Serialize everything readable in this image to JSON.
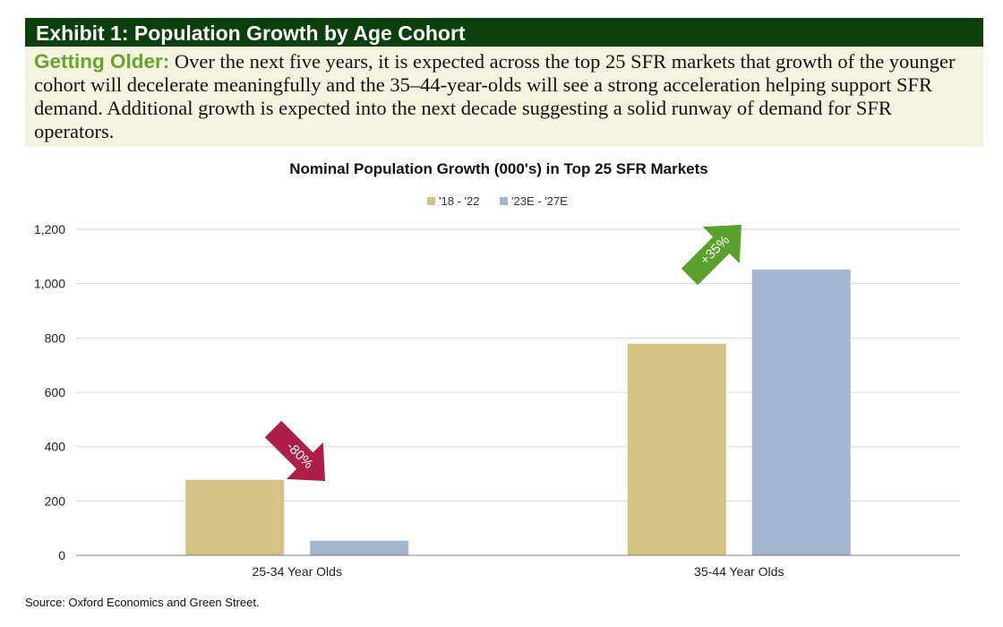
{
  "exhibit": {
    "title": "Exhibit 1: Population Growth by Age Cohort",
    "note_lead": "Getting Older:",
    "note_text": "Over the next five years, it is expected across the top 25 SFR markets that growth of the younger cohort will decelerate meaningfully and the 35–44-year-olds will see a strong acceleration helping support SFR demand. Additional growth is expected into the next decade suggesting a solid runway of demand for SFR operators."
  },
  "source": "Source: Oxford Economics and Green Street.",
  "chart_data": {
    "type": "bar",
    "title": "Nominal Population Growth (000's) in Top 25 SFR Markets",
    "categories": [
      "25-34 Year Olds",
      "35-44 Year Olds"
    ],
    "series": [
      {
        "name": "'18 - '22",
        "color": "#d4c185",
        "values": [
          278,
          779
        ]
      },
      {
        "name": "'23E - '27E",
        "color": "#a3b5cf",
        "values": [
          54,
          1052
        ]
      }
    ],
    "ylim": [
      0,
      1200
    ],
    "yticks": [
      0,
      200,
      400,
      600,
      800,
      1000,
      1200
    ],
    "ytick_labels": [
      "0",
      "200",
      "400",
      "600",
      "800",
      "1,000",
      "1,200"
    ],
    "grid": true,
    "legend_position": "top-center",
    "annotations": [
      {
        "text": "-80%",
        "direction": "down",
        "color": "#ad1f47",
        "category": "25-34 Year Olds"
      },
      {
        "text": "+35%",
        "direction": "up",
        "color": "#5aa02c",
        "category": "35-44 Year Olds"
      }
    ]
  }
}
